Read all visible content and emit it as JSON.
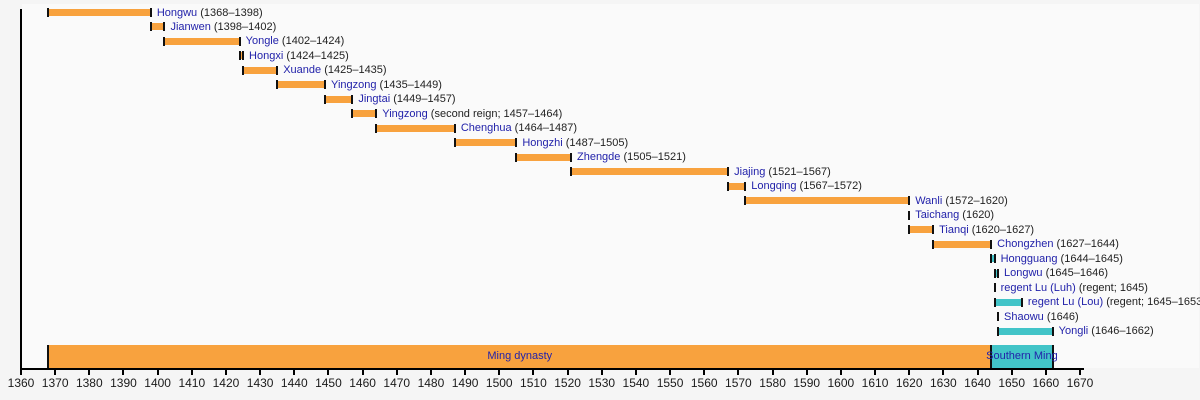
{
  "chart_data": {
    "type": "bar",
    "subtype": "horizontal-timeline-gantt",
    "description_visible_text_only": true,
    "axis": {
      "unit": "year",
      "min": 1360,
      "max": 1670,
      "step": 10,
      "tick_labels": [
        "1360",
        "1370",
        "1380",
        "1390",
        "1400",
        "1410",
        "1420",
        "1430",
        "1440",
        "1450",
        "1460",
        "1470",
        "1480",
        "1490",
        "1500",
        "1510",
        "1520",
        "1530",
        "1540",
        "1550",
        "1560",
        "1570",
        "1580",
        "1590",
        "1600",
        "1610",
        "1620",
        "1630",
        "1640",
        "1650",
        "1660",
        "1670"
      ]
    },
    "reigns": [
      {
        "name": "Hongwu",
        "detail": "(1368–1398)",
        "start": 1368,
        "end": 1398,
        "group": "ming"
      },
      {
        "name": "Jianwen",
        "detail": "(1398–1402)",
        "start": 1398,
        "end": 1402,
        "group": "ming"
      },
      {
        "name": "Yongle",
        "detail": "(1402–1424)",
        "start": 1402,
        "end": 1424,
        "group": "ming"
      },
      {
        "name": "Hongxi",
        "detail": "(1424–1425)",
        "start": 1424,
        "end": 1425,
        "group": "ming"
      },
      {
        "name": "Xuande",
        "detail": "(1425–1435)",
        "start": 1425,
        "end": 1435,
        "group": "ming"
      },
      {
        "name": "Yingzong",
        "detail": "(1435–1449)",
        "start": 1435,
        "end": 1449,
        "group": "ming"
      },
      {
        "name": "Jingtai",
        "detail": "(1449–1457)",
        "start": 1449,
        "end": 1457,
        "group": "ming"
      },
      {
        "name": "Yingzong",
        "detail": "(second reign; 1457–1464)",
        "start": 1457,
        "end": 1464,
        "group": "ming"
      },
      {
        "name": "Chenghua",
        "detail": "(1464–1487)",
        "start": 1464,
        "end": 1487,
        "group": "ming"
      },
      {
        "name": "Hongzhi",
        "detail": "(1487–1505)",
        "start": 1487,
        "end": 1505,
        "group": "ming"
      },
      {
        "name": "Zhengde",
        "detail": "(1505–1521)",
        "start": 1505,
        "end": 1521,
        "group": "ming"
      },
      {
        "name": "Jiajing",
        "detail": "(1521–1567)",
        "start": 1521,
        "end": 1567,
        "group": "ming"
      },
      {
        "name": "Longqing",
        "detail": "(1567–1572)",
        "start": 1567,
        "end": 1572,
        "group": "ming"
      },
      {
        "name": "Wanli",
        "detail": "(1572–1620)",
        "start": 1572,
        "end": 1620,
        "group": "ming"
      },
      {
        "name": "Taichang",
        "detail": "(1620)",
        "start": 1620,
        "end": 1620,
        "group": "ming"
      },
      {
        "name": "Tianqi",
        "detail": "(1620–1627)",
        "start": 1620,
        "end": 1627,
        "group": "ming"
      },
      {
        "name": "Chongzhen",
        "detail": "(1627–1644)",
        "start": 1627,
        "end": 1644,
        "group": "ming"
      },
      {
        "name": "Hongguang",
        "detail": "(1644–1645)",
        "start": 1644,
        "end": 1645,
        "group": "southern"
      },
      {
        "name": "Longwu",
        "detail": "(1645–1646)",
        "start": 1645,
        "end": 1646,
        "group": "southern"
      },
      {
        "name": "regent Lu (Luh)",
        "detail": "(regent; 1645)",
        "start": 1645,
        "end": 1645,
        "group": "southern"
      },
      {
        "name": "regent Lu (Lou)",
        "detail": "(regent; 1645–1653)",
        "start": 1645,
        "end": 1653,
        "group": "southern"
      },
      {
        "name": "Shaowu",
        "detail": "(1646)",
        "start": 1646,
        "end": 1646,
        "group": "southern"
      },
      {
        "name": "Yongli",
        "detail": "(1646–1662)",
        "start": 1646,
        "end": 1662,
        "group": "southern"
      }
    ],
    "bands": [
      {
        "label": "Ming dynasty",
        "start": 1368,
        "end": 1644,
        "group": "ming"
      },
      {
        "label": "Southern Ming",
        "start": 1644,
        "end": 1662,
        "group": "southern"
      }
    ],
    "colors": {
      "ming": "#f8a23e",
      "southern": "#42c4c8",
      "link_blue": "#2222aa",
      "date_text": "#222222",
      "axis": "#000000",
      "background": "#f5f5f5",
      "plot_background": "#fafafa"
    },
    "legend": "none",
    "grid": "off"
  }
}
